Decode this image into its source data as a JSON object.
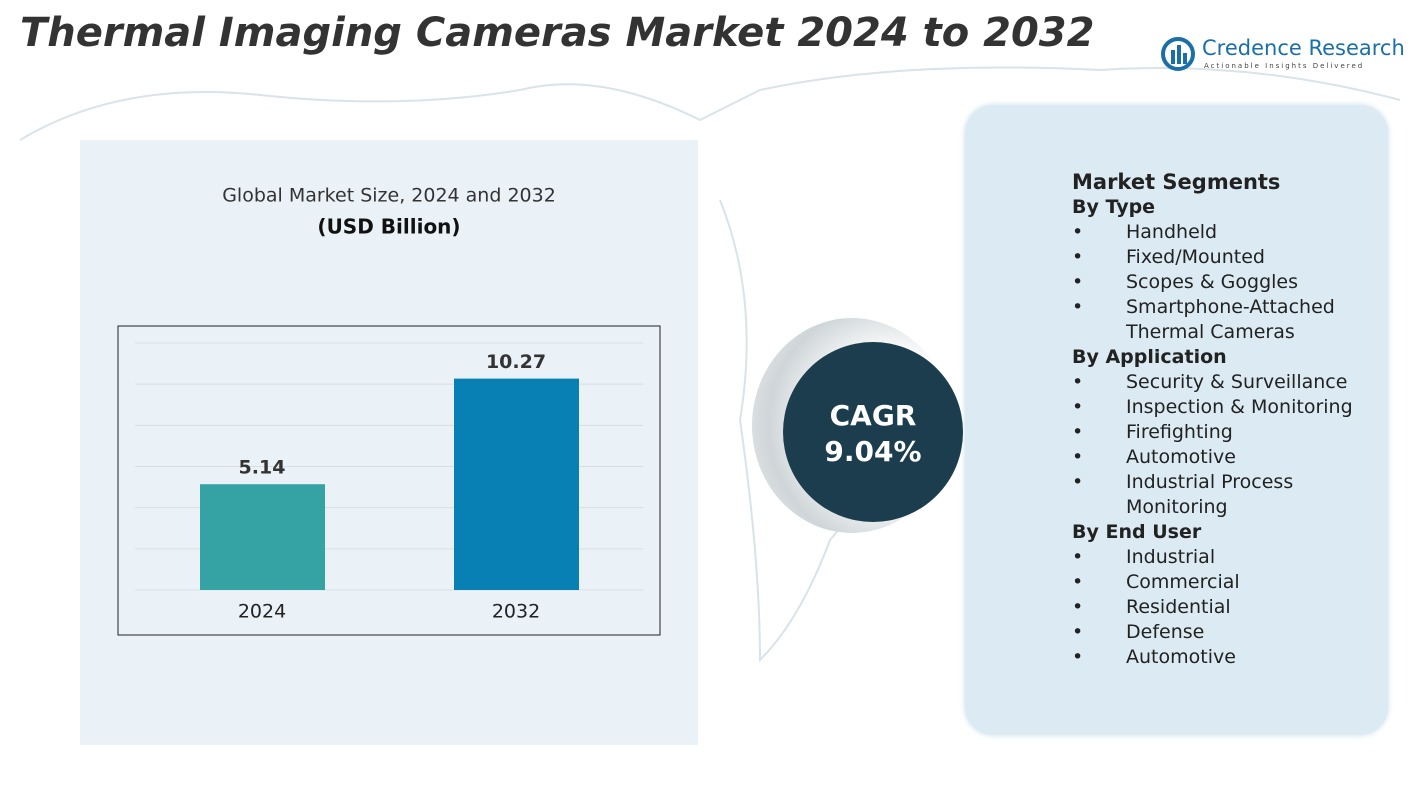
{
  "title": "Thermal Imaging Cameras Market 2024 to 2032",
  "logo": {
    "name": "Credence Research",
    "tagline": "Actionable Insights Delivered"
  },
  "chart_data": {
    "type": "bar",
    "title": "Global Market Size, 2024 and 2032",
    "subtitle": "(USD Billion)",
    "categories": [
      "2024",
      "2032"
    ],
    "values": [
      5.14,
      10.27
    ],
    "colors": [
      "#35a3a3",
      "#0880b3"
    ],
    "ylim": [
      0,
      12
    ],
    "yticks": [
      0,
      2,
      4,
      6,
      8,
      10,
      12
    ],
    "grid": true
  },
  "cagr": {
    "label": "CAGR",
    "value": "9.04%"
  },
  "segments": {
    "title": "Market Segments",
    "groups": [
      {
        "name": "By Type",
        "items": [
          "Handheld",
          "Fixed/Mounted",
          "Scopes & Goggles",
          "Smartphone-Attached Thermal Cameras"
        ]
      },
      {
        "name": "By Application",
        "items": [
          "Security & Surveillance",
          "Inspection & Monitoring",
          "Firefighting",
          "Automotive",
          "Industrial Process Monitoring"
        ]
      },
      {
        "name": "By End User",
        "items": [
          "Industrial",
          "Commercial",
          "Residential",
          "Defense",
          "Automotive"
        ]
      }
    ]
  }
}
